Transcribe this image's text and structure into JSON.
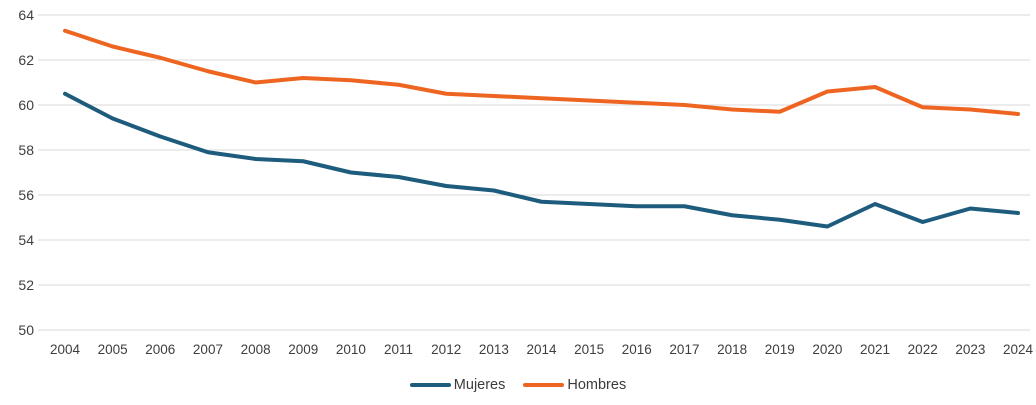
{
  "chart_data": {
    "type": "line",
    "x": [
      2004,
      2005,
      2006,
      2007,
      2008,
      2009,
      2010,
      2011,
      2012,
      2013,
      2014,
      2015,
      2016,
      2017,
      2018,
      2019,
      2020,
      2021,
      2022,
      2023,
      2024
    ],
    "series": [
      {
        "name": "Mujeres",
        "color": "#1d5c7d",
        "values": [
          60.5,
          59.4,
          58.6,
          57.9,
          57.6,
          57.5,
          57.0,
          56.8,
          56.4,
          56.2,
          55.7,
          55.6,
          55.5,
          55.5,
          55.1,
          54.9,
          54.6,
          55.6,
          54.8,
          55.4,
          55.2
        ]
      },
      {
        "name": "Hombres",
        "color": "#ee6522",
        "values": [
          63.3,
          62.6,
          62.1,
          61.5,
          61.0,
          61.2,
          61.1,
          60.9,
          60.5,
          60.4,
          60.3,
          60.2,
          60.1,
          60.0,
          59.8,
          59.7,
          60.6,
          60.8,
          59.9,
          59.8,
          59.6
        ]
      }
    ],
    "title": "",
    "xlabel": "",
    "ylabel": "",
    "ylim": [
      50,
      64
    ],
    "yticks": [
      50,
      52,
      54,
      56,
      58,
      60,
      62,
      64
    ],
    "grid": true,
    "legend_position": "bottom-center"
  },
  "colors": {
    "gridline": "#d9d9d9",
    "axis_text": "#3e3e3e",
    "background": "#ffffff"
  }
}
